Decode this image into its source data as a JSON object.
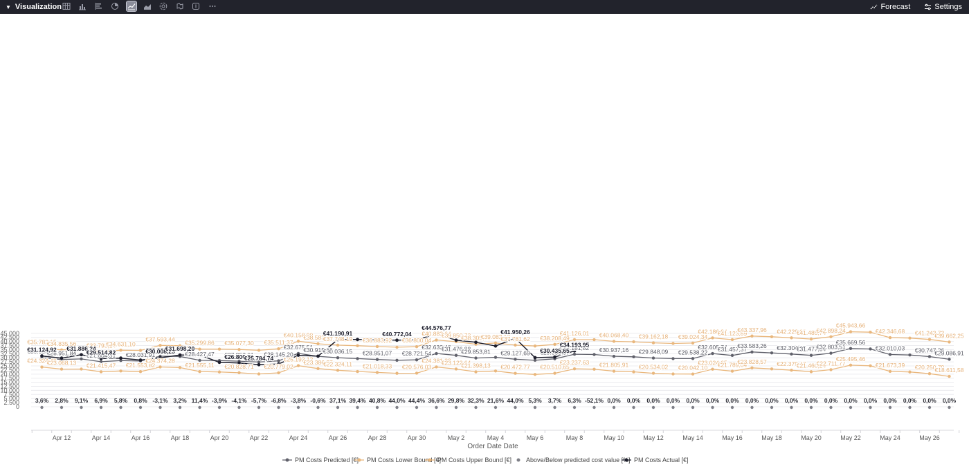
{
  "toolbar": {
    "title": "Visualization",
    "forecast_label": "Forecast",
    "settings_label": "Settings",
    "icons": [
      "table-icon",
      "bar-chart-icon",
      "bar-line-chart-icon",
      "pie-chart-icon",
      "line-chart-icon",
      "area-chart-icon",
      "sunburst-icon",
      "geo-map-icon",
      "number-icon",
      "more-icon"
    ],
    "active_icon": "line-chart-icon"
  },
  "colors": {
    "toolbar_bg": "#22232c",
    "predicted": "#60616b",
    "lower_bound": "#e9b77d",
    "upper_bound": "#e9b77d",
    "percent": "#7f8088",
    "actual": "#1d1e2c"
  },
  "chart_data": {
    "type": "line",
    "xlabel": "Order Date Date",
    "ylabel": "",
    "ylim": [
      0,
      47500
    ],
    "yticks": [
      "0",
      "2.500",
      "5.000",
      "7.500",
      "10.000",
      "12.500",
      "15.000",
      "17.500",
      "20.000",
      "22.500",
      "25.000",
      "27.500",
      "30.000",
      "32.500",
      "35.000",
      "37.500",
      "40.000",
      "42.500",
      "45.000"
    ],
    "x_start": "Apr 11",
    "x_tick_labels": [
      "Apr 12",
      "Apr 14",
      "Apr 16",
      "Apr 18",
      "Apr 20",
      "Apr 22",
      "Apr 24",
      "Apr 26",
      "Apr 28",
      "Apr 30",
      "May 2",
      "May 4",
      "May 6",
      "May 8",
      "May 10",
      "May 12",
      "May 14",
      "May 16",
      "May 18",
      "May 20",
      "May 22",
      "May 24",
      "May 26"
    ],
    "grid": true,
    "legend_position": "bottom",
    "series": [
      {
        "name": "PM Costs Predicted [€]",
        "color": "#60616b",
        "values": [
          30053,
          28951,
          29300,
          27604,
          28300,
          28031,
          30983,
          30800,
          28427,
          28300,
          27953,
          27400,
          28145,
          32675,
          30915,
          30036,
          29500,
          28951,
          28500,
          28721,
          32632,
          31476,
          29853,
          30300,
          29127,
          28500,
          29358,
          32181,
          32000,
          30937,
          30600,
          29848,
          29500,
          29538,
          32605,
          31457,
          33583,
          33000,
          32304,
          31477,
          32803,
          35669,
          35400,
          32010,
          31700,
          30747,
          29086
        ],
        "labels": [
          "€30.053,28",
          "€28.951,84",
          "",
          "€27.604,31",
          "",
          "€28.031,91",
          "€30.983,86",
          "",
          "€28.427,47",
          "",
          "€27.953,01",
          "",
          "€28.145,20",
          "€32.675,51",
          "€30.915,03",
          "€30.036,15",
          "",
          "€28.951,07",
          "",
          "€28.721,54",
          "€32.632,48",
          "€31.476,88",
          "€29.853,81",
          "",
          "€29.127,69",
          "",
          "€29.358,57",
          "€32.181,82",
          "",
          "€30.937,16",
          "",
          "€29.848,09",
          "",
          "€29.538,22",
          "€32.605,74",
          "€31.457,37",
          "€33.583,26",
          "",
          "€32.304,25",
          "€31.477,04",
          "€32.803,51",
          "€35.669,56",
          "",
          "€32.010,03",
          "",
          "€30.747,26",
          "€29.086,91"
        ]
      },
      {
        "name": "PM Costs Lower Bound [€]",
        "color": "#e9b77d",
        "values": [
          24324,
          23068,
          23100,
          21415,
          21900,
          21553,
          24374,
          24000,
          21555,
          21300,
          20828,
          20100,
          20779,
          25192,
          23386,
          22324,
          21600,
          21018,
          20500,
          20576,
          24381,
          23122,
          21398,
          21900,
          20472,
          19800,
          20510,
          23237,
          23000,
          21805,
          21400,
          20534,
          20100,
          20042,
          23024,
          21789,
          23828,
          23200,
          22379,
          21460,
          22711,
          25495,
          25100,
          21673,
          21300,
          20250,
          18611
        ],
        "labels": [
          "€24.324,40",
          "€23.068,13",
          "",
          "€21.415,47",
          "",
          "€21.553,82",
          "€24.374,28",
          "",
          "€21.555,11",
          "",
          "€20.828,71",
          "",
          "€20.779,02",
          "€25.192,12",
          "€23.386,27",
          "€22.324,11",
          "",
          "€21.018,33",
          "",
          "€20.576,03",
          "€24.381,39",
          "€23.122,64",
          "€21.398,13",
          "",
          "€20.472,77",
          "",
          "€20.510,65",
          "€23.237,63",
          "",
          "€21.805,91",
          "",
          "€20.534,02",
          "",
          "€20.042,10",
          "€23.024,65",
          "€21.789,04",
          "€23.828,57",
          "",
          "€22.379,47",
          "€21.460,24",
          "€22.711,77",
          "€25.495,46",
          "",
          "€21.673,39",
          "",
          "€20.250,79",
          "€18.611,58"
        ]
      },
      {
        "name": "PM Costs Upper Bound [€]",
        "color": "#e9b77d",
        "values": [
          35782,
          34835,
          35300,
          33793,
          34631,
          34500,
          37593,
          37400,
          35299,
          35300,
          35077,
          34600,
          35511,
          40158,
          38583,
          37748,
          37400,
          36883,
          36500,
          36800,
          40883,
          39850,
          38305,
          39082,
          37781,
          37200,
          38208,
          41126,
          41100,
          40068,
          39800,
          39162,
          38800,
          39024,
          42186,
          41123,
          43337,
          42900,
          42229,
          41485,
          42898,
          45943,
          45700,
          42346,
          42100,
          41243,
          39662
        ],
        "labels": [
          "€35.782,15",
          "€34.835,56",
          "",
          "€33.793,14",
          "€34.631,10",
          "",
          "€37.593,44",
          "",
          "€35.299,86",
          "",
          "€35.077,30",
          "",
          "€35.511,37",
          "€40.158,90",
          "€38.583,79",
          "€37.748,19",
          "",
          "€36.883,92",
          "",
          "€36.800,04",
          "€40.883,64",
          "€39.850,73",
          "€38.305,68",
          "€39.082,13",
          "€37.781,62",
          "",
          "€38.208,49",
          "€41.126,01",
          "",
          "€40.068,40",
          "",
          "€39.162,18",
          "",
          "€39.024,34",
          "€42.186,84",
          "€41.123,89",
          "€43.337,96",
          "",
          "€42.229,02",
          "€41.485,74",
          "€42.898,24",
          "€45.943,66",
          "",
          "€42.346,68",
          "",
          "€41.243,73",
          "€39.662,25"
        ]
      },
      {
        "name": "Above/Below predicted cost value [%]",
        "color": "#7f8088",
        "values": [
          3.6,
          2.8,
          9.1,
          6.9,
          5.8,
          0.8,
          -3.1,
          3.2,
          11.4,
          -3.9,
          -4.1,
          -5.7,
          -6.8,
          -3.8,
          -0.6,
          37.1,
          39.4,
          40.8,
          44.0,
          44.4,
          36.6,
          29.8,
          32.3,
          21.6,
          44.0,
          5.3,
          3.7,
          6.3,
          -52.1,
          0.0,
          0.0,
          0.0,
          0.0,
          0.0,
          0.0,
          0.0,
          0.0,
          0.0,
          0.0,
          0.0,
          0.0,
          0.0,
          0.0,
          0.0,
          0.0,
          0.0,
          0.0
        ],
        "labels": [
          "3,6%",
          "2,8%",
          "9,1%",
          "6,9%",
          "5,8%",
          "0,8%",
          "-3,1%",
          "3,2%",
          "11,4%",
          "-3,9%",
          "-4,1%",
          "-5,7%",
          "-6,8%",
          "-3,8%",
          "-0,6%",
          "37,1%",
          "39,4%",
          "40,8%",
          "44,0%",
          "44,4%",
          "36,6%",
          "29,8%",
          "32,3%",
          "21,6%",
          "44,0%",
          "5,3%",
          "3,7%",
          "6,3%",
          "-52,1%",
          "0,0%",
          "0,0%",
          "0,0%",
          "0,0%",
          "0,0%",
          "0,0%",
          "0,0%",
          "0,0%",
          "0,0%",
          "0,0%",
          "0,0%",
          "0,0%",
          "0,0%",
          "0,0%",
          "0,0%",
          "0,0%",
          "0,0%",
          "0,0%"
        ]
      },
      {
        "name": "PM Costs Actual [€]",
        "color": "#1d1e2c",
        "values": [
          31124,
          29800,
          31886,
          29514,
          29800,
          28600,
          30008,
          31698,
          31698,
          27200,
          26800,
          25784,
          26200,
          31500,
          31000,
          41190,
          41190,
          41000,
          40772,
          41000,
          44576,
          40800,
          39500,
          37200,
          41950,
          30100,
          30435,
          34193
        ],
        "labels": [
          "€31.124,92",
          "",
          "€31.886,24",
          "€29.514,82",
          "",
          "",
          "€30.008,23",
          "€31.698,20",
          "",
          "",
          "€26.800,71",
          "€25.784,74",
          "",
          "",
          "",
          "€41.190,91",
          "",
          "",
          "€40.772,04",
          "",
          "€44.576,77",
          "",
          "",
          "",
          "€41.950,26",
          "",
          "€30.435,65",
          "€34.193,95"
        ]
      }
    ]
  }
}
